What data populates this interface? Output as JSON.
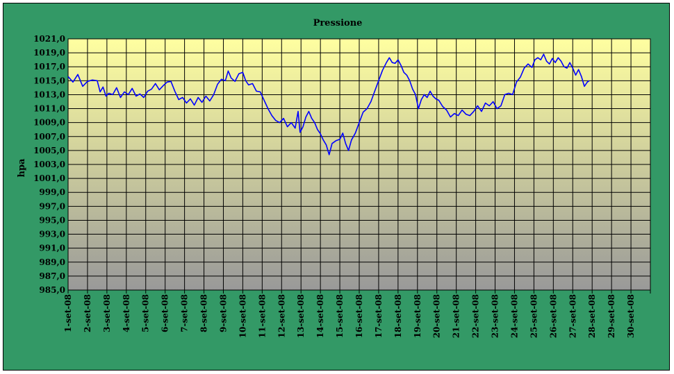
{
  "chart_data": {
    "type": "line",
    "title": "Pressione",
    "ylabel": "hpa",
    "xlabel": "",
    "ylim": [
      985,
      1021
    ],
    "y_step": 2,
    "y_tick_labels": [
      "985,0",
      "987,0",
      "989,0",
      "991,0",
      "993,0",
      "995,0",
      "997,0",
      "999,0",
      "1001,0",
      "1003,0",
      "1005,0",
      "1007,0",
      "1009,0",
      "1011,0",
      "1013,0",
      "1015,0",
      "1017,0",
      "1019,0",
      "1021,0"
    ],
    "categories": [
      "1-set-08",
      "2-set-08",
      "3-set-08",
      "4-set-08",
      "5-set-08",
      "6-set-08",
      "7-set-08",
      "8-set-08",
      "9-set-08",
      "10-set-08",
      "11-set-08",
      "12-set-08",
      "13-set-08",
      "14-set-08",
      "15-set-08",
      "16-set-08",
      "17-set-08",
      "18-set-08",
      "19-set-08",
      "20-set-08",
      "21-set-08",
      "22-set-08",
      "23-set-08",
      "24-set-08",
      "25-set-08",
      "26-set-08",
      "27-set-08",
      "28-set-08",
      "29-set-08",
      "30-set-08"
    ],
    "grid": true,
    "legend": "none",
    "colors": {
      "frame_background": "#339966",
      "plot_top": "#ffffa0",
      "plot_bottom": "#999999",
      "line": "#0000ff",
      "grid": "#000000"
    },
    "series": [
      {
        "values": [
          [
            0.0,
            1015.6
          ],
          [
            0.25,
            1014.8
          ],
          [
            0.5,
            1015.9
          ],
          [
            0.75,
            1014.2
          ],
          [
            1.0,
            1014.9
          ],
          [
            1.25,
            1015.1
          ],
          [
            1.5,
            1015.0
          ],
          [
            1.65,
            1013.4
          ],
          [
            1.8,
            1014.1
          ],
          [
            1.95,
            1012.8
          ],
          [
            2.1,
            1013.2
          ],
          [
            2.3,
            1013.0
          ],
          [
            2.5,
            1014.0
          ],
          [
            2.7,
            1012.6
          ],
          [
            2.9,
            1013.4
          ],
          [
            3.1,
            1013.0
          ],
          [
            3.3,
            1013.9
          ],
          [
            3.5,
            1012.8
          ],
          [
            3.7,
            1013.1
          ],
          [
            3.9,
            1012.6
          ],
          [
            4.1,
            1013.5
          ],
          [
            4.3,
            1013.8
          ],
          [
            4.5,
            1014.6
          ],
          [
            4.7,
            1013.7
          ],
          [
            4.9,
            1014.3
          ],
          [
            5.1,
            1014.8
          ],
          [
            5.3,
            1014.9
          ],
          [
            5.5,
            1013.5
          ],
          [
            5.7,
            1012.3
          ],
          [
            5.9,
            1012.6
          ],
          [
            6.1,
            1011.8
          ],
          [
            6.3,
            1012.4
          ],
          [
            6.5,
            1011.5
          ],
          [
            6.7,
            1012.6
          ],
          [
            6.9,
            1011.9
          ],
          [
            7.1,
            1012.8
          ],
          [
            7.3,
            1012.1
          ],
          [
            7.5,
            1013.0
          ],
          [
            7.7,
            1014.5
          ],
          [
            7.9,
            1015.2
          ],
          [
            8.1,
            1015.0
          ],
          [
            8.25,
            1016.4
          ],
          [
            8.4,
            1015.4
          ],
          [
            8.6,
            1014.9
          ],
          [
            8.8,
            1016.0
          ],
          [
            9.0,
            1016.2
          ],
          [
            9.15,
            1015.0
          ],
          [
            9.3,
            1014.4
          ],
          [
            9.5,
            1014.6
          ],
          [
            9.7,
            1013.5
          ],
          [
            9.9,
            1013.4
          ],
          [
            10.1,
            1012.2
          ],
          [
            10.3,
            1011.0
          ],
          [
            10.5,
            1010.0
          ],
          [
            10.7,
            1009.3
          ],
          [
            10.9,
            1009.0
          ],
          [
            11.1,
            1009.6
          ],
          [
            11.3,
            1008.4
          ],
          [
            11.5,
            1009.0
          ],
          [
            11.7,
            1008.2
          ],
          [
            11.85,
            1010.6
          ],
          [
            11.95,
            1007.6
          ],
          [
            12.1,
            1008.4
          ],
          [
            12.25,
            1009.8
          ],
          [
            12.4,
            1010.6
          ],
          [
            12.55,
            1009.6
          ],
          [
            12.7,
            1009.0
          ],
          [
            12.85,
            1008.0
          ],
          [
            13.0,
            1007.4
          ],
          [
            13.15,
            1006.5
          ],
          [
            13.3,
            1005.8
          ],
          [
            13.45,
            1004.4
          ],
          [
            13.6,
            1006.0
          ],
          [
            13.8,
            1006.4
          ],
          [
            14.0,
            1006.6
          ],
          [
            14.15,
            1007.5
          ],
          [
            14.3,
            1006.0
          ],
          [
            14.45,
            1005.0
          ],
          [
            14.6,
            1006.5
          ],
          [
            14.8,
            1007.5
          ],
          [
            15.0,
            1009.0
          ],
          [
            15.2,
            1010.5
          ],
          [
            15.4,
            1011.0
          ],
          [
            15.6,
            1012.0
          ],
          [
            15.8,
            1013.5
          ],
          [
            16.0,
            1015.0
          ],
          [
            16.2,
            1016.5
          ],
          [
            16.4,
            1017.6
          ],
          [
            16.55,
            1018.3
          ],
          [
            16.7,
            1017.6
          ],
          [
            16.85,
            1017.5
          ],
          [
            17.0,
            1018.0
          ],
          [
            17.15,
            1017.2
          ],
          [
            17.3,
            1016.2
          ],
          [
            17.45,
            1015.8
          ],
          [
            17.6,
            1015.0
          ],
          [
            17.75,
            1013.8
          ],
          [
            17.9,
            1013.0
          ],
          [
            18.05,
            1011.0
          ],
          [
            18.2,
            1012.3
          ],
          [
            18.35,
            1013.0
          ],
          [
            18.5,
            1012.6
          ],
          [
            18.65,
            1013.5
          ],
          [
            18.8,
            1012.8
          ],
          [
            18.95,
            1012.4
          ],
          [
            19.1,
            1012.2
          ],
          [
            19.3,
            1011.3
          ],
          [
            19.5,
            1010.8
          ],
          [
            19.7,
            1009.8
          ],
          [
            19.9,
            1010.3
          ],
          [
            20.1,
            1010.0
          ],
          [
            20.3,
            1010.8
          ],
          [
            20.5,
            1010.2
          ],
          [
            20.7,
            1010.0
          ],
          [
            20.9,
            1010.6
          ],
          [
            21.1,
            1011.4
          ],
          [
            21.3,
            1010.6
          ],
          [
            21.5,
            1011.8
          ],
          [
            21.7,
            1011.4
          ],
          [
            21.9,
            1012.0
          ],
          [
            22.1,
            1011.0
          ],
          [
            22.3,
            1011.4
          ],
          [
            22.5,
            1013.0
          ],
          [
            22.7,
            1013.2
          ],
          [
            22.9,
            1013.0
          ],
          [
            23.1,
            1014.8
          ],
          [
            23.3,
            1015.5
          ],
          [
            23.5,
            1016.8
          ],
          [
            23.7,
            1017.4
          ],
          [
            23.9,
            1016.9
          ],
          [
            24.05,
            1018.0
          ],
          [
            24.2,
            1018.3
          ],
          [
            24.35,
            1018.0
          ],
          [
            24.5,
            1018.8
          ],
          [
            24.65,
            1017.8
          ],
          [
            24.8,
            1017.4
          ],
          [
            24.95,
            1018.2
          ],
          [
            25.1,
            1017.6
          ],
          [
            25.25,
            1018.3
          ],
          [
            25.4,
            1017.8
          ],
          [
            25.55,
            1017.0
          ],
          [
            25.7,
            1016.8
          ],
          [
            25.85,
            1017.6
          ],
          [
            26.0,
            1016.8
          ],
          [
            26.15,
            1015.8
          ],
          [
            26.3,
            1016.6
          ],
          [
            26.45,
            1015.6
          ],
          [
            26.6,
            1014.2
          ],
          [
            26.75,
            1014.8
          ],
          [
            26.85,
            1015.0
          ]
        ]
      }
    ]
  }
}
